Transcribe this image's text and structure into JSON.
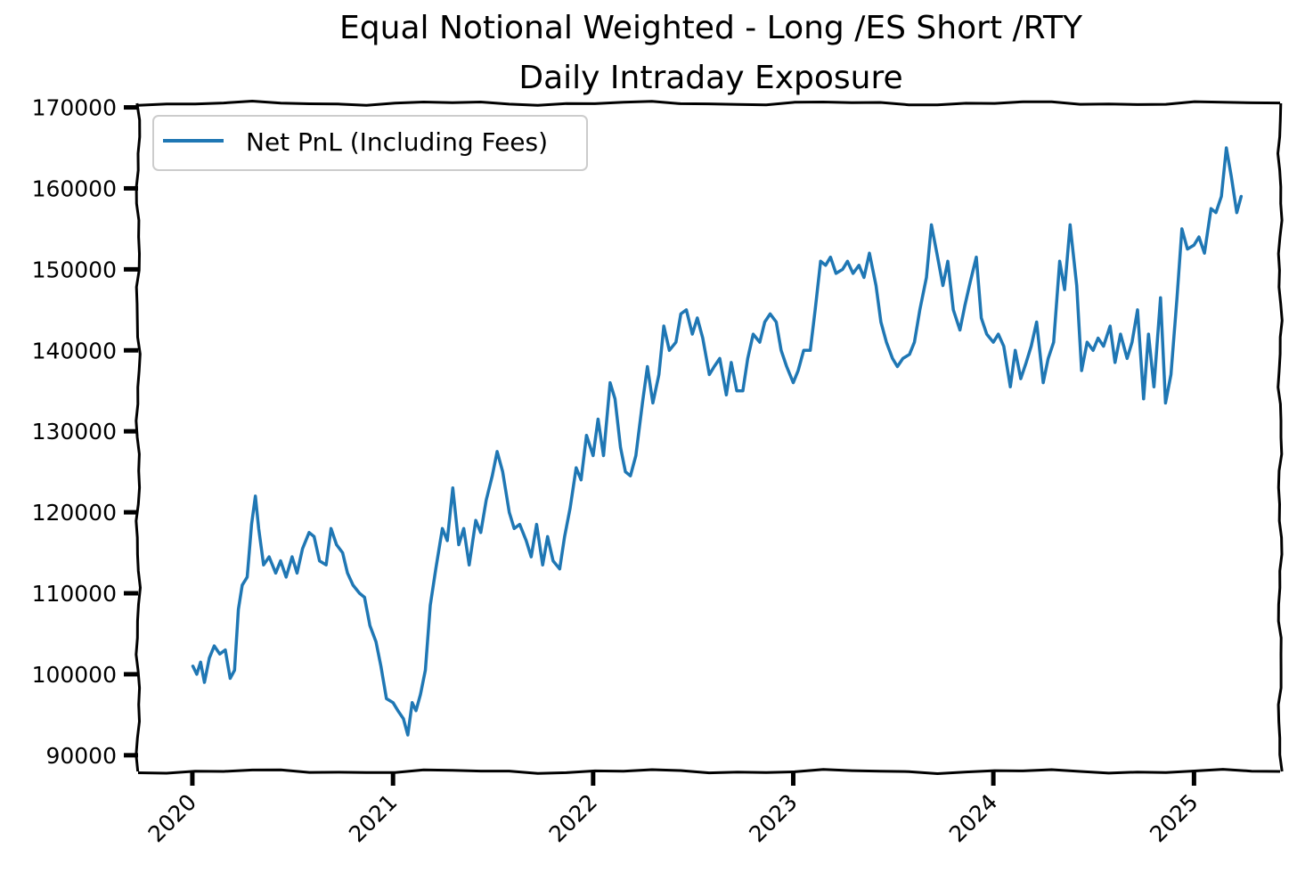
{
  "chart_data": {
    "type": "line",
    "title": "Equal Notional Weighted - Long /ES Short /RTY",
    "subtitle": "Daily Intraday Exposure",
    "xlabel": "",
    "ylabel": "",
    "xlim": [
      "2019-09-24",
      "2025-06-07"
    ],
    "ylim": [
      88000,
      170500
    ],
    "x_ticks": [
      "2020",
      "2021",
      "2022",
      "2023",
      "2024",
      "2025"
    ],
    "y_ticks": [
      "90000",
      "100000",
      "110000",
      "120000",
      "130000",
      "140000",
      "150000",
      "160000",
      "170000"
    ],
    "grid": false,
    "legend_position": "upper-left",
    "series": [
      {
        "name": "Net PnL (Including Fees)",
        "color": "#1f77b4",
        "x": [
          "2020-01-02",
          "2020-01-09",
          "2020-01-16",
          "2020-01-23",
          "2020-02-01",
          "2020-02-10",
          "2020-02-20",
          "2020-03-01",
          "2020-03-10",
          "2020-03-18",
          "2020-03-25",
          "2020-04-01",
          "2020-04-10",
          "2020-04-18",
          "2020-04-25",
          "2020-05-01",
          "2020-05-10",
          "2020-05-20",
          "2020-06-01",
          "2020-06-10",
          "2020-06-20",
          "2020-07-01",
          "2020-07-10",
          "2020-07-20",
          "2020-08-01",
          "2020-08-10",
          "2020-08-20",
          "2020-09-01",
          "2020-09-10",
          "2020-09-20",
          "2020-10-01",
          "2020-10-10",
          "2020-10-20",
          "2020-11-01",
          "2020-11-10",
          "2020-11-20",
          "2020-12-01",
          "2020-12-10",
          "2020-12-20",
          "2021-01-01",
          "2021-01-10",
          "2021-01-20",
          "2021-01-28",
          "2021-02-05",
          "2021-02-12",
          "2021-02-20",
          "2021-03-01",
          "2021-03-10",
          "2021-03-20",
          "2021-04-01",
          "2021-04-10",
          "2021-04-20",
          "2021-05-01",
          "2021-05-10",
          "2021-05-20",
          "2021-06-01",
          "2021-06-10",
          "2021-06-20",
          "2021-07-01",
          "2021-07-10",
          "2021-07-20",
          "2021-08-01",
          "2021-08-10",
          "2021-08-20",
          "2021-09-01",
          "2021-09-10",
          "2021-09-20",
          "2021-10-01",
          "2021-10-10",
          "2021-10-20",
          "2021-11-01",
          "2021-11-10",
          "2021-11-20",
          "2021-12-01",
          "2021-12-10",
          "2021-12-20",
          "2022-01-01",
          "2022-01-10",
          "2022-01-20",
          "2022-02-01",
          "2022-02-10",
          "2022-02-20",
          "2022-03-01",
          "2022-03-10",
          "2022-03-20",
          "2022-04-01",
          "2022-04-10",
          "2022-04-20",
          "2022-05-01",
          "2022-05-10",
          "2022-05-20",
          "2022-06-01",
          "2022-06-10",
          "2022-06-20",
          "2022-07-01",
          "2022-07-10",
          "2022-07-20",
          "2022-08-01",
          "2022-08-10",
          "2022-08-20",
          "2022-09-01",
          "2022-09-10",
          "2022-09-20",
          "2022-10-01",
          "2022-10-10",
          "2022-10-20",
          "2022-11-01",
          "2022-11-10",
          "2022-11-20",
          "2022-12-01",
          "2022-12-10",
          "2022-12-20",
          "2023-01-01",
          "2023-01-10",
          "2023-01-20",
          "2023-02-01",
          "2023-02-10",
          "2023-02-20",
          "2023-03-01",
          "2023-03-10",
          "2023-03-20",
          "2023-04-01",
          "2023-04-10",
          "2023-04-20",
          "2023-05-01",
          "2023-05-10",
          "2023-05-20",
          "2023-06-01",
          "2023-06-10",
          "2023-06-20",
          "2023-07-01",
          "2023-07-10",
          "2023-07-20",
          "2023-08-01",
          "2023-08-10",
          "2023-08-20",
          "2023-09-01",
          "2023-09-10",
          "2023-09-20",
          "2023-10-01",
          "2023-10-10",
          "2023-10-20",
          "2023-11-01",
          "2023-11-10",
          "2023-11-20",
          "2023-12-01",
          "2023-12-10",
          "2023-12-20",
          "2024-01-01",
          "2024-01-10",
          "2024-01-20",
          "2024-02-01",
          "2024-02-10",
          "2024-02-20",
          "2024-03-01",
          "2024-03-10",
          "2024-03-20",
          "2024-04-01",
          "2024-04-10",
          "2024-04-20",
          "2024-05-01",
          "2024-05-10",
          "2024-05-20",
          "2024-06-01",
          "2024-06-10",
          "2024-06-20",
          "2024-07-01",
          "2024-07-10",
          "2024-07-20",
          "2024-08-01",
          "2024-08-10",
          "2024-08-20",
          "2024-09-01",
          "2024-09-10",
          "2024-09-20",
          "2024-10-01",
          "2024-10-10",
          "2024-10-20",
          "2024-11-01",
          "2024-11-10",
          "2024-11-20",
          "2024-12-01",
          "2024-12-10",
          "2024-12-20",
          "2025-01-01",
          "2025-01-10",
          "2025-01-20",
          "2025-02-01",
          "2025-02-10",
          "2025-02-20",
          "2025-03-01",
          "2025-03-10",
          "2025-03-20",
          "2025-03-28"
        ],
        "y": [
          101000,
          100000,
          101500,
          99000,
          102000,
          103500,
          102500,
          103000,
          99500,
          100500,
          108000,
          111000,
          112000,
          118500,
          122000,
          118000,
          113500,
          114500,
          112500,
          114000,
          112000,
          114500,
          112500,
          115500,
          117500,
          117000,
          114000,
          113500,
          118000,
          116000,
          115000,
          112500,
          111000,
          110000,
          109500,
          106000,
          104000,
          101000,
          97000,
          96500,
          95500,
          94500,
          92500,
          96500,
          95500,
          97500,
          100500,
          108500,
          113000,
          118000,
          116500,
          123000,
          116000,
          118000,
          113500,
          119000,
          117500,
          121500,
          124500,
          127500,
          125000,
          120000,
          118000,
          118500,
          116500,
          114500,
          118500,
          113500,
          117000,
          114000,
          113000,
          117000,
          120500,
          125500,
          124000,
          129500,
          127000,
          131500,
          127000,
          136000,
          134000,
          128000,
          125000,
          124500,
          127000,
          133500,
          138000,
          133500,
          137000,
          143000,
          140000,
          141000,
          144500,
          145000,
          142000,
          144000,
          141500,
          137000,
          138000,
          139000,
          134500,
          138500,
          135000,
          135000,
          139000,
          142000,
          141000,
          143500,
          144500,
          143500,
          140000,
          138000,
          136000,
          137500,
          140000,
          140000,
          145000,
          151000,
          150500,
          151500,
          149500,
          150000,
          151000,
          149500,
          150500,
          149000,
          152000,
          148000,
          143500,
          141000,
          139000,
          138000,
          139000,
          139500,
          141000,
          145000,
          149000,
          155500,
          152000,
          148000,
          151000,
          145000,
          142500,
          145500,
          148500,
          151500,
          144000,
          142000,
          141000,
          142000,
          140500,
          135500,
          140000,
          136500,
          138500,
          140500,
          143500,
          136000,
          139000,
          141000,
          151000,
          147500,
          155500,
          148000,
          137500,
          141000,
          140000,
          141500,
          140500,
          143000,
          138500,
          142000,
          139000,
          141000,
          145000,
          134000,
          142000,
          135500,
          146500,
          133500,
          137000,
          146500,
          155000,
          152500,
          153000,
          154000,
          152000,
          157500,
          157000,
          159000,
          165000,
          161500,
          157000,
          159000
        ]
      }
    ]
  }
}
